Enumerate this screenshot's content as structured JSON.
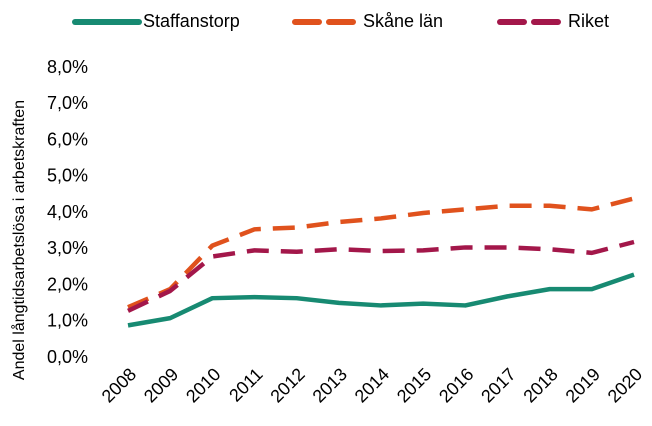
{
  "chart_data": {
    "type": "line",
    "y_label": "Andel långtidsarbetslösa i arbetskraften",
    "categories": [
      "2008",
      "2009",
      "2010",
      "2011",
      "2012",
      "2013",
      "2014",
      "2015",
      "2016",
      "2017",
      "2018",
      "2019",
      "2020"
    ],
    "series": [
      {
        "name": "Staffanstorp",
        "color": "#178a72",
        "dash": "solid",
        "values": [
          0.9,
          1.1,
          1.65,
          1.68,
          1.65,
          1.52,
          1.45,
          1.5,
          1.45,
          1.7,
          1.9,
          1.9,
          2.3
        ]
      },
      {
        "name": "Skåne län",
        "color": "#e0521d",
        "dash": "dashed",
        "values": [
          1.4,
          1.9,
          3.1,
          3.55,
          3.6,
          3.75,
          3.85,
          4.0,
          4.1,
          4.2,
          4.2,
          4.1,
          4.4
        ]
      },
      {
        "name": "Riket",
        "color": "#a3174a",
        "dash": "dashed",
        "values": [
          1.3,
          1.85,
          2.8,
          2.97,
          2.93,
          3.0,
          2.95,
          2.97,
          3.05,
          3.05,
          3.0,
          2.9,
          3.2
        ]
      }
    ],
    "ylim": [
      0,
      8
    ],
    "yticks": [
      {
        "value": 0,
        "label": "0,0%"
      },
      {
        "value": 1,
        "label": "1,0%"
      },
      {
        "value": 2,
        "label": "2,0%"
      },
      {
        "value": 3,
        "label": "3,0%"
      },
      {
        "value": 4,
        "label": "4,0%"
      },
      {
        "value": 5,
        "label": "5,0%"
      },
      {
        "value": 6,
        "label": "6,0%"
      },
      {
        "value": 7,
        "label": "7,0%"
      },
      {
        "value": 8,
        "label": "8,0%"
      }
    ],
    "grid": false,
    "legend": "top"
  }
}
